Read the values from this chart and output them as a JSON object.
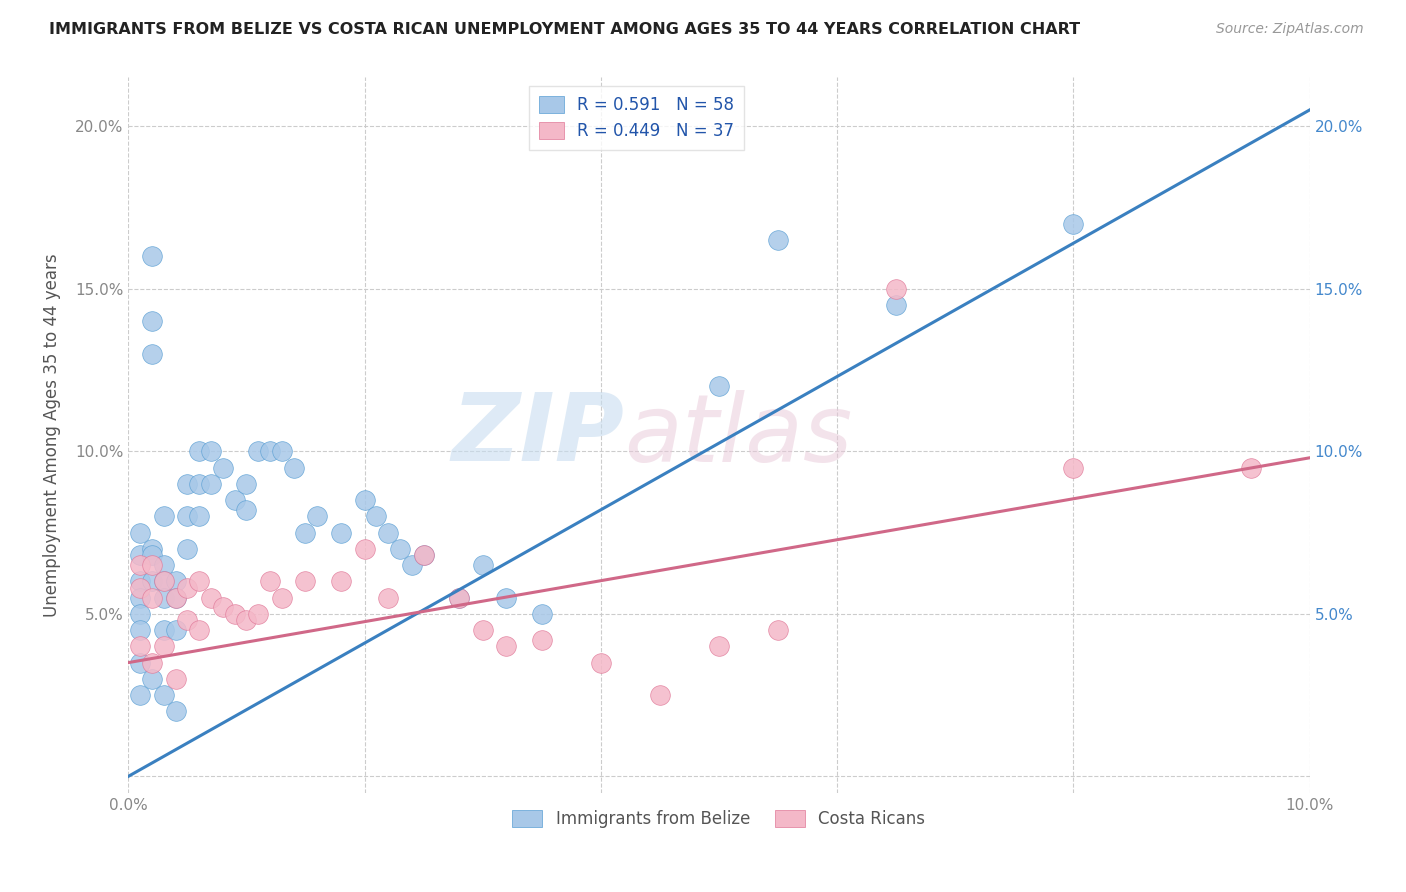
{
  "title": "IMMIGRANTS FROM BELIZE VS COSTA RICAN UNEMPLOYMENT AMONG AGES 35 TO 44 YEARS CORRELATION CHART",
  "source": "Source: ZipAtlas.com",
  "ylabel": "Unemployment Among Ages 35 to 44 years",
  "xlim": [
    0,
    0.1
  ],
  "ylim": [
    -0.005,
    0.215
  ],
  "xticks": [
    0.0,
    0.02,
    0.04,
    0.06,
    0.08,
    0.1
  ],
  "xtick_labels": [
    "0.0%",
    "",
    "",
    "",
    "",
    "10.0%"
  ],
  "yticks": [
    0.0,
    0.05,
    0.1,
    0.15,
    0.2
  ],
  "ytick_labels": [
    "",
    "5.0%",
    "10.0%",
    "15.0%",
    "20.0%"
  ],
  "blue_color": "#a8c8e8",
  "blue_edge_color": "#5a9fd4",
  "pink_color": "#f4b8c8",
  "pink_edge_color": "#e07898",
  "blue_line_color": "#3a80c0",
  "pink_line_color": "#d06888",
  "legend_R1": "0.591",
  "legend_N1": "58",
  "legend_R2": "0.449",
  "legend_N2": "37",
  "legend_label1": "Immigrants from Belize",
  "legend_label2": "Costa Ricans",
  "watermark_zip": "ZIP",
  "watermark_atlas": "atlas",
  "blue_line_x0": 0.0,
  "blue_line_y0": 0.0,
  "blue_line_x1": 0.1,
  "blue_line_y1": 0.205,
  "pink_line_x0": 0.0,
  "pink_line_y0": 0.035,
  "pink_line_x1": 0.1,
  "pink_line_y1": 0.098,
  "blue_scatter_x": [
    0.001,
    0.001,
    0.001,
    0.001,
    0.001,
    0.001,
    0.002,
    0.002,
    0.002,
    0.002,
    0.002,
    0.002,
    0.003,
    0.003,
    0.003,
    0.003,
    0.003,
    0.004,
    0.004,
    0.004,
    0.005,
    0.005,
    0.005,
    0.006,
    0.006,
    0.006,
    0.007,
    0.007,
    0.008,
    0.009,
    0.01,
    0.01,
    0.011,
    0.012,
    0.013,
    0.014,
    0.015,
    0.016,
    0.018,
    0.02,
    0.021,
    0.022,
    0.023,
    0.024,
    0.025,
    0.028,
    0.03,
    0.032,
    0.035,
    0.001,
    0.001,
    0.002,
    0.003,
    0.004,
    0.05,
    0.055,
    0.065,
    0.08
  ],
  "blue_scatter_y": [
    0.075,
    0.068,
    0.06,
    0.055,
    0.05,
    0.045,
    0.16,
    0.14,
    0.13,
    0.07,
    0.068,
    0.06,
    0.08,
    0.065,
    0.06,
    0.055,
    0.045,
    0.06,
    0.055,
    0.045,
    0.09,
    0.08,
    0.07,
    0.1,
    0.09,
    0.08,
    0.1,
    0.09,
    0.095,
    0.085,
    0.09,
    0.082,
    0.1,
    0.1,
    0.1,
    0.095,
    0.075,
    0.08,
    0.075,
    0.085,
    0.08,
    0.075,
    0.07,
    0.065,
    0.068,
    0.055,
    0.065,
    0.055,
    0.05,
    0.035,
    0.025,
    0.03,
    0.025,
    0.02,
    0.12,
    0.165,
    0.145,
    0.17
  ],
  "pink_scatter_x": [
    0.001,
    0.001,
    0.001,
    0.002,
    0.002,
    0.002,
    0.003,
    0.003,
    0.004,
    0.004,
    0.005,
    0.005,
    0.006,
    0.006,
    0.007,
    0.008,
    0.009,
    0.01,
    0.011,
    0.012,
    0.013,
    0.015,
    0.018,
    0.02,
    0.022,
    0.025,
    0.028,
    0.03,
    0.032,
    0.035,
    0.04,
    0.045,
    0.05,
    0.055,
    0.065,
    0.08,
    0.095
  ],
  "pink_scatter_y": [
    0.065,
    0.058,
    0.04,
    0.065,
    0.055,
    0.035,
    0.06,
    0.04,
    0.055,
    0.03,
    0.058,
    0.048,
    0.06,
    0.045,
    0.055,
    0.052,
    0.05,
    0.048,
    0.05,
    0.06,
    0.055,
    0.06,
    0.06,
    0.07,
    0.055,
    0.068,
    0.055,
    0.045,
    0.04,
    0.042,
    0.035,
    0.025,
    0.04,
    0.045,
    0.15,
    0.095,
    0.095
  ]
}
